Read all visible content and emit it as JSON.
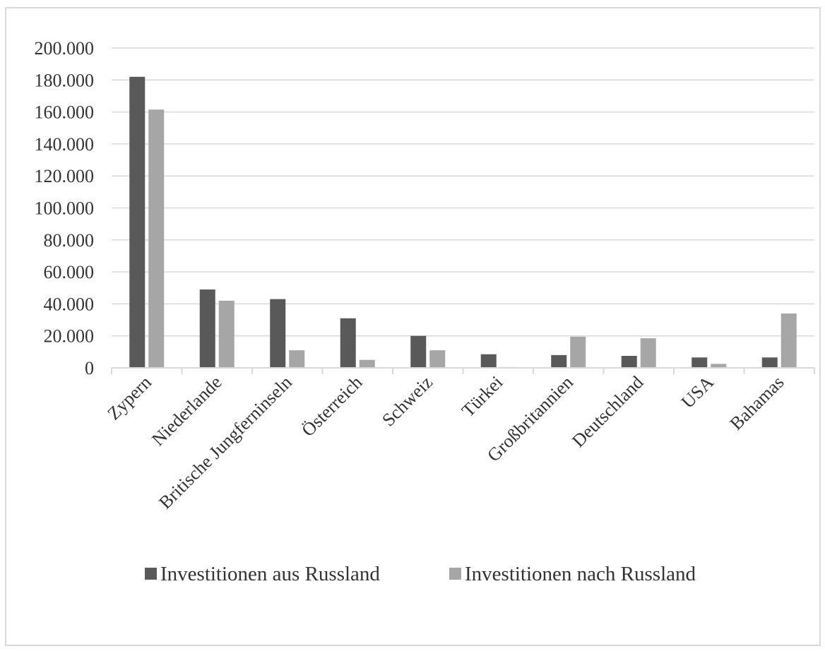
{
  "chart_data": {
    "type": "bar",
    "title": "",
    "xlabel": "",
    "ylabel": "",
    "ylim": [
      0,
      200000
    ],
    "yticks": [
      0,
      20000,
      40000,
      60000,
      80000,
      100000,
      120000,
      140000,
      160000,
      180000,
      200000
    ],
    "ytick_labels": [
      "0",
      "20.000",
      "40.000",
      "60.000",
      "80.000",
      "100.000",
      "120.000",
      "140.000",
      "160.000",
      "180.000",
      "200.000"
    ],
    "grid": true,
    "legend_position": "bottom",
    "categories": [
      "Zypern",
      "Niederlande",
      "Britische Jungferninseln",
      "Österreich",
      "Schweiz",
      "Türkei",
      "Großbritannien",
      "Deutschland",
      "USA",
      "Bahamas"
    ],
    "series": [
      {
        "name": "Investitionen aus Russland",
        "color": "#595959",
        "values": [
          182000,
          49000,
          43000,
          31000,
          20000,
          8500,
          8000,
          7500,
          6500,
          6500
        ]
      },
      {
        "name": "Investitionen nach Russland",
        "color": "#a6a6a6",
        "values": [
          161500,
          42000,
          11000,
          5000,
          11000,
          500,
          19500,
          18500,
          2500,
          34000
        ]
      }
    ]
  }
}
